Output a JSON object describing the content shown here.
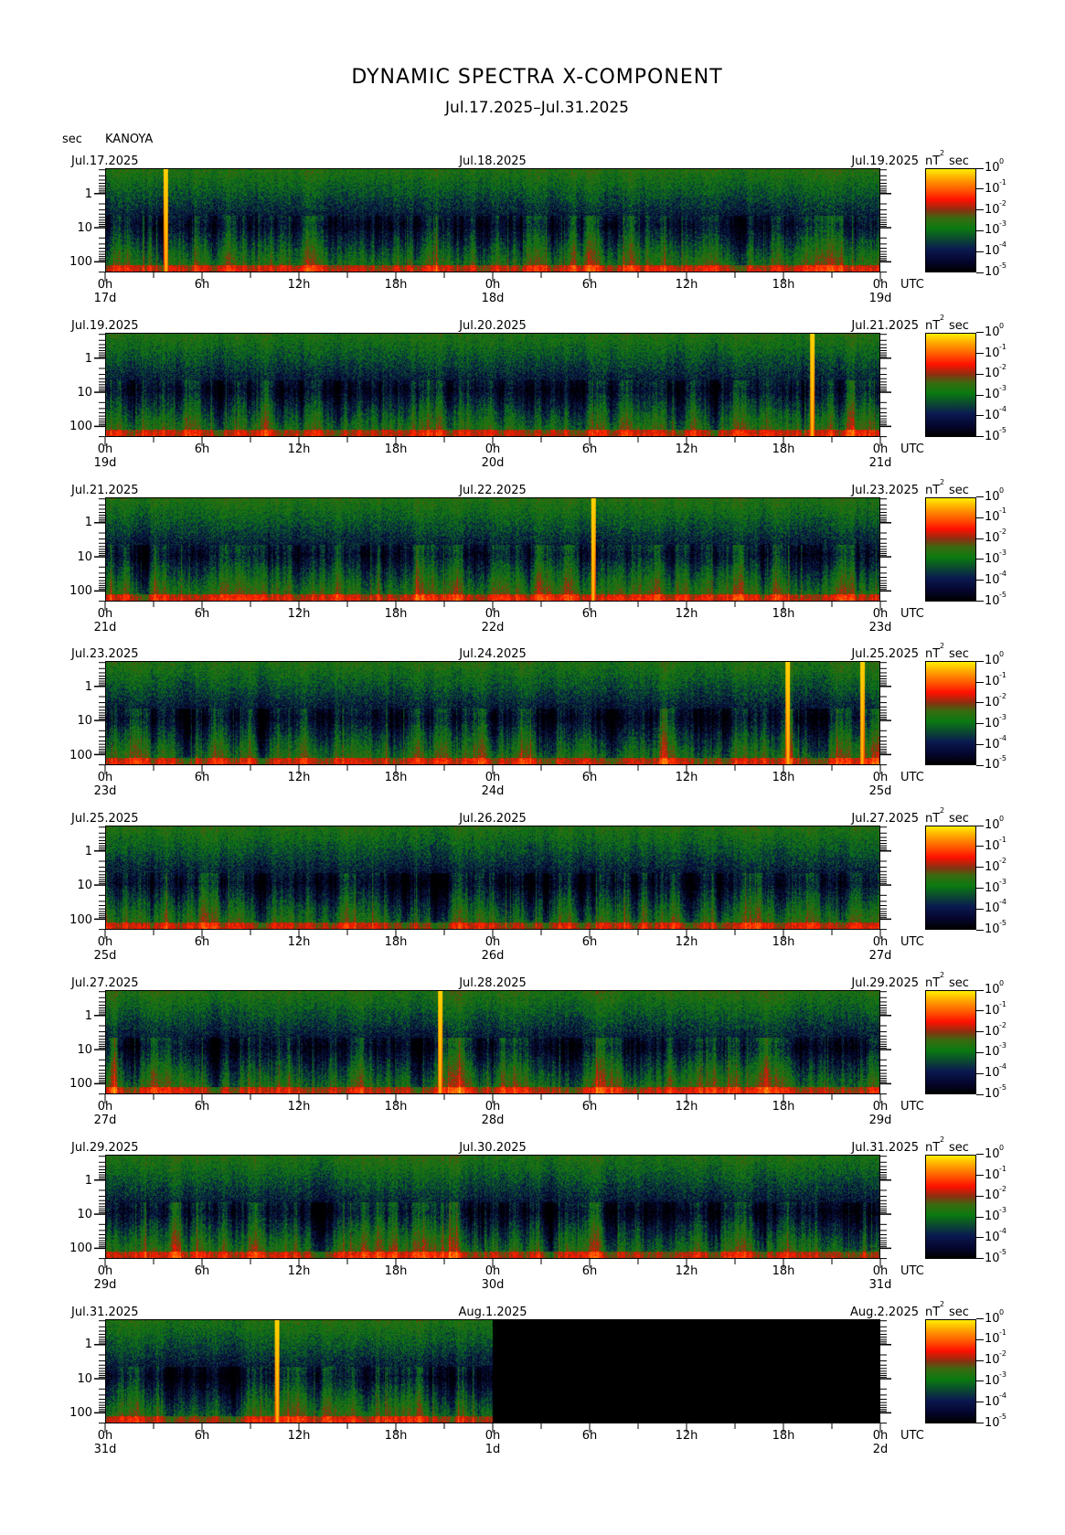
{
  "title": "DYNAMIC SPECTRA X-COMPONENT",
  "subtitle": "Jul.17.2025–Jul.31.2025",
  "station": "KANOYA",
  "y_unit": "sec",
  "colorbar_unit": "nT",
  "colorbar_unit_exp": "2",
  "colorbar_unit_tail": "sec",
  "x_unit": "UTC",
  "chart_data": {
    "type": "heatmap",
    "x_axis": "time (UTC), 48 h per panel",
    "y_axis": "period (sec), log scale",
    "ylim": [
      0.18,
      205
    ],
    "y_ticks": [
      "1",
      "10",
      "100"
    ],
    "hour_ticks": [
      "0h",
      "6h",
      "12h",
      "18h",
      "0h",
      "6h",
      "12h",
      "18h",
      "0h"
    ],
    "colorbar": {
      "scale": "log",
      "range": [
        1e-05,
        1
      ],
      "ticks": [
        {
          "base": "10",
          "exp": "0"
        },
        {
          "base": "10",
          "exp": "-1"
        },
        {
          "base": "10",
          "exp": "-2"
        },
        {
          "base": "10",
          "exp": "-3"
        },
        {
          "base": "10",
          "exp": "-4"
        },
        {
          "base": "10",
          "exp": "-5"
        }
      ]
    },
    "panels": [
      {
        "dates": [
          "Jul.17.2025",
          "Jul.18.2025",
          "Jul.19.2025"
        ],
        "days": [
          "17d",
          "18d",
          "19d"
        ],
        "data_hours": 48,
        "bursts_h": [
          3.7
        ]
      },
      {
        "dates": [
          "Jul.19.2025",
          "Jul.20.2025",
          "Jul.21.2025"
        ],
        "days": [
          "19d",
          "20d",
          "21d"
        ],
        "data_hours": 48,
        "bursts_h": [
          43.8
        ]
      },
      {
        "dates": [
          "Jul.21.2025",
          "Jul.22.2025",
          "Jul.23.2025"
        ],
        "days": [
          "21d",
          "22d",
          "23d"
        ],
        "data_hours": 48,
        "bursts_h": [
          30.2
        ]
      },
      {
        "dates": [
          "Jul.23.2025",
          "Jul.24.2025",
          "Jul.25.2025"
        ],
        "days": [
          "23d",
          "24d",
          "25d"
        ],
        "data_hours": 48,
        "bursts_h": [
          42.3,
          46.9
        ]
      },
      {
        "dates": [
          "Jul.25.2025",
          "Jul.26.2025",
          "Jul.27.2025"
        ],
        "days": [
          "25d",
          "26d",
          "27d"
        ],
        "data_hours": 48,
        "bursts_h": []
      },
      {
        "dates": [
          "Jul.27.2025",
          "Jul.28.2025",
          "Jul.29.2025"
        ],
        "days": [
          "27d",
          "28d",
          "29d"
        ],
        "data_hours": 48,
        "bursts_h": [
          20.7
        ]
      },
      {
        "dates": [
          "Jul.29.2025",
          "Jul.30.2025",
          "Jul.31.2025"
        ],
        "days": [
          "29d",
          "30d",
          "31d"
        ],
        "data_hours": 48,
        "bursts_h": []
      },
      {
        "dates": [
          "Jul.31.2025",
          "Aug.1.2025",
          "Aug.2.2025"
        ],
        "days": [
          "31d",
          "1d",
          "2d"
        ],
        "data_hours": 24,
        "bursts_h": [
          10.6
        ]
      }
    ]
  }
}
